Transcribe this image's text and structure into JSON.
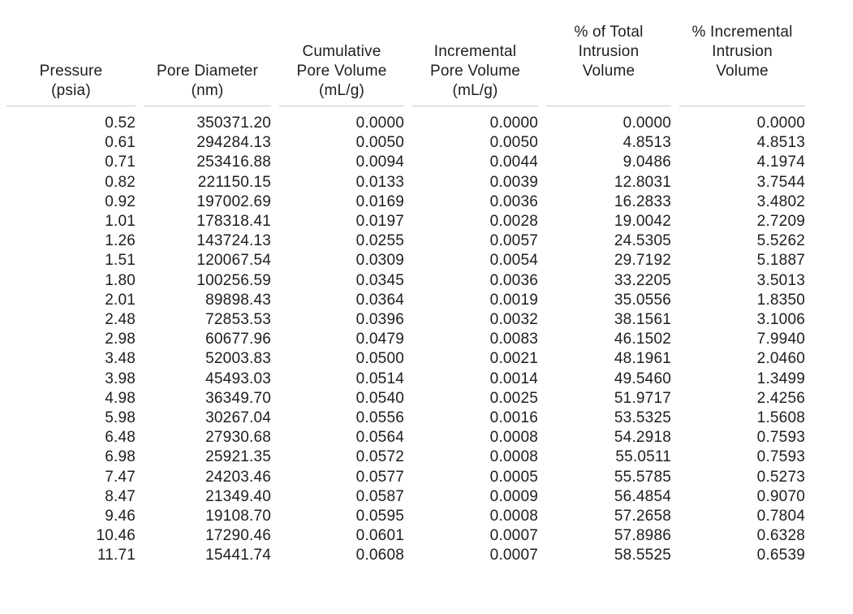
{
  "page": {
    "background_color": "#ffffff",
    "text_color": "#1e1e1e",
    "rule_color": "#c9c9c9"
  },
  "table": {
    "columns": [
      {
        "name": "pressure",
        "label": "Pressure (psia)",
        "display": "Pressure\n(psia)"
      },
      {
        "name": "pore-diameter",
        "label": "Pore Diameter (nm)",
        "display": "Pore Diameter\n(nm)"
      },
      {
        "name": "cumulative-pore-volume",
        "label": "Cumulative Pore Volume (mL/g)",
        "display": "Cumulative\nPore Volume\n(mL/g)"
      },
      {
        "name": "incremental-pore-volume",
        "label": "Incremental Pore Volume (mL/g)",
        "display": "Incremental\nPore Volume\n(mL/g)"
      },
      {
        "name": "pct-total-intrusion-volume",
        "label": "% of Total Intrusion Volume",
        "display": "% of Total\nIntrusion\nVolume\n "
      },
      {
        "name": "pct-incremental-intrusion-volume",
        "label": "% Incremental Intrusion Volume",
        "display": "% Incremental\nIntrusion\nVolume\n "
      }
    ]
  },
  "chart_data": {
    "type": "table",
    "columns": [
      "Pressure (psia)",
      "Pore Diameter (nm)",
      "Cumulative Pore Volume (mL/g)",
      "Incremental Pore Volume (mL/g)",
      "% of Total Intrusion Volume",
      "% Incremental Intrusion Volume"
    ],
    "rows": [
      [
        "0.52",
        "350371.20",
        "0.0000",
        "0.0000",
        "0.0000",
        "0.0000"
      ],
      [
        "0.61",
        "294284.13",
        "0.0050",
        "0.0050",
        "4.8513",
        "4.8513"
      ],
      [
        "0.71",
        "253416.88",
        "0.0094",
        "0.0044",
        "9.0486",
        "4.1974"
      ],
      [
        "0.82",
        "221150.15",
        "0.0133",
        "0.0039",
        "12.8031",
        "3.7544"
      ],
      [
        "0.92",
        "197002.69",
        "0.0169",
        "0.0036",
        "16.2833",
        "3.4802"
      ],
      [
        "1.01",
        "178318.41",
        "0.0197",
        "0.0028",
        "19.0042",
        "2.7209"
      ],
      [
        "1.26",
        "143724.13",
        "0.0255",
        "0.0057",
        "24.5305",
        "5.5262"
      ],
      [
        "1.51",
        "120067.54",
        "0.0309",
        "0.0054",
        "29.7192",
        "5.1887"
      ],
      [
        "1.80",
        "100256.59",
        "0.0345",
        "0.0036",
        "33.2205",
        "3.5013"
      ],
      [
        "2.01",
        "89898.43",
        "0.0364",
        "0.0019",
        "35.0556",
        "1.8350"
      ],
      [
        "2.48",
        "72853.53",
        "0.0396",
        "0.0032",
        "38.1561",
        "3.1006"
      ],
      [
        "2.98",
        "60677.96",
        "0.0479",
        "0.0083",
        "46.1502",
        "7.9940"
      ],
      [
        "3.48",
        "52003.83",
        "0.0500",
        "0.0021",
        "48.1961",
        "2.0460"
      ],
      [
        "3.98",
        "45493.03",
        "0.0514",
        "0.0014",
        "49.5460",
        "1.3499"
      ],
      [
        "4.98",
        "36349.70",
        "0.0540",
        "0.0025",
        "51.9717",
        "2.4256"
      ],
      [
        "5.98",
        "30267.04",
        "0.0556",
        "0.0016",
        "53.5325",
        "1.5608"
      ],
      [
        "6.48",
        "27930.68",
        "0.0564",
        "0.0008",
        "54.2918",
        "0.7593"
      ],
      [
        "6.98",
        "25921.35",
        "0.0572",
        "0.0008",
        "55.0511",
        "0.7593"
      ],
      [
        "7.47",
        "24203.46",
        "0.0577",
        "0.0005",
        "55.5785",
        "0.5273"
      ],
      [
        "8.47",
        "21349.40",
        "0.0587",
        "0.0009",
        "56.4854",
        "0.9070"
      ],
      [
        "9.46",
        "19108.70",
        "0.0595",
        "0.0008",
        "57.2658",
        "0.7804"
      ],
      [
        "10.46",
        "17290.46",
        "0.0601",
        "0.0007",
        "57.8986",
        "0.6328"
      ],
      [
        "11.71",
        "15441.74",
        "0.0608",
        "0.0007",
        "58.5525",
        "0.6539"
      ]
    ]
  }
}
